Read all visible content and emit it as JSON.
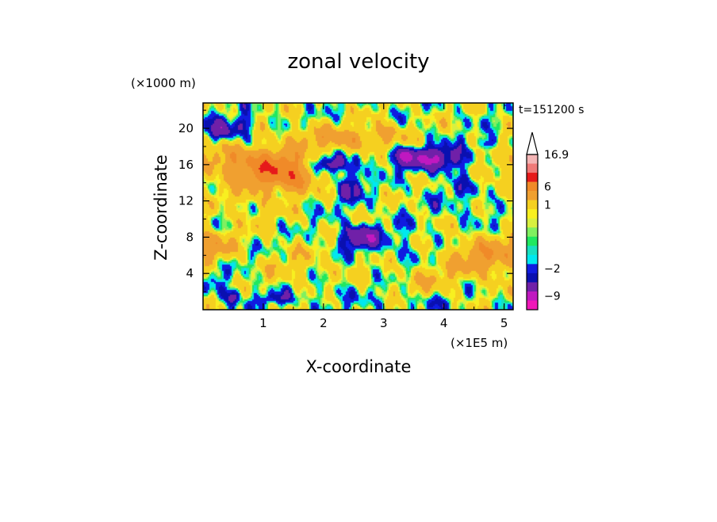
{
  "chart_data": {
    "type": "heatmap",
    "title": "zonal velocity",
    "xlabel": "X-coordinate",
    "ylabel": "Z-coordinate",
    "x_unit_label": "(×1E5 m)",
    "y_unit_label": "(×1000 m)",
    "time_label": "t=151200 s",
    "xlim": [
      0,
      5.15
    ],
    "ylim": [
      0,
      22.8
    ],
    "x_ticks": [
      "1",
      "2",
      "3",
      "4",
      "5"
    ],
    "x_tick_values": [
      1,
      2,
      3,
      4,
      5
    ],
    "y_ticks": [
      "4",
      "8",
      "12",
      "16",
      "20"
    ],
    "y_tick_values": [
      4,
      8,
      12,
      16,
      20
    ],
    "colorbar": {
      "labels": [
        "16.9",
        "6",
        "1",
        "−2",
        "−9"
      ],
      "levels": [
        16.9,
        13,
        10,
        6,
        3,
        1,
        0.6,
        0.3,
        0,
        -0.3,
        -0.6,
        -1,
        -2,
        -3,
        -6,
        -9,
        -13
      ],
      "colors": [
        "#f4b5b5",
        "#f07a78",
        "#e61a1a",
        "#f08a28",
        "#f0a030",
        "#f5d020",
        "#f8f020",
        "#d8f040",
        "#80f060",
        "#20e860",
        "#18e0c0",
        "#00e8f0",
        "#101ce0",
        "#0a10b0",
        "#7020a8",
        "#c018c0",
        "#f018b8"
      ],
      "arrow_color": "#ffffff"
    },
    "field": {
      "background": 0.4,
      "features": [
        {
          "x": 0.35,
          "z": 19.7,
          "sx": 0.22,
          "sz": 0.9,
          "value": -4.5
        },
        {
          "x": 0.7,
          "z": 20.5,
          "sx": 0.08,
          "sz": 0.7,
          "value": -3.5
        },
        {
          "x": 0.55,
          "z": 16.3,
          "sx": 0.45,
          "sz": 1.3,
          "value": 5
        },
        {
          "x": 1.25,
          "z": 15.2,
          "sx": 0.35,
          "sz": 1.6,
          "value": 7
        },
        {
          "x": 1.6,
          "z": 14.2,
          "sx": 0.2,
          "sz": 1.2,
          "value": 4
        },
        {
          "x": 1.9,
          "z": 19.0,
          "sx": 0.4,
          "sz": 1.0,
          "value": 3
        },
        {
          "x": 2.1,
          "z": 16.0,
          "sx": 0.2,
          "sz": 0.6,
          "value": -5
        },
        {
          "x": 2.5,
          "z": 18.5,
          "sx": 0.25,
          "sz": 0.8,
          "value": 3
        },
        {
          "x": 2.6,
          "z": 8.0,
          "sx": 0.22,
          "sz": 0.9,
          "value": -6
        },
        {
          "x": 2.55,
          "z": 14.5,
          "sx": 0.06,
          "sz": 1.8,
          "value": -4
        },
        {
          "x": 2.4,
          "z": 13.5,
          "sx": 0.08,
          "sz": 1.2,
          "value": -3.5
        },
        {
          "x": 3.0,
          "z": 19.4,
          "sx": 0.25,
          "sz": 0.9,
          "value": 3.5
        },
        {
          "x": 3.9,
          "z": 16.6,
          "sx": 0.45,
          "sz": 0.9,
          "value": -6
        },
        {
          "x": 3.35,
          "z": 17.0,
          "sx": 0.15,
          "sz": 0.6,
          "value": -4
        },
        {
          "x": 4.7,
          "z": 18.3,
          "sx": 0.1,
          "sz": 0.5,
          "value": -4
        },
        {
          "x": 4.8,
          "z": 16.0,
          "sx": 0.3,
          "sz": 1.2,
          "value": 3
        },
        {
          "x": 4.75,
          "z": 5.8,
          "sx": 0.45,
          "sz": 1.5,
          "value": 5
        },
        {
          "x": 0.15,
          "z": 6.8,
          "sx": 0.25,
          "sz": 1.4,
          "value": 4
        },
        {
          "x": 0.7,
          "z": 12.0,
          "sx": 0.35,
          "sz": 1.5,
          "value": 1.5
        },
        {
          "x": 1.7,
          "z": 13.0,
          "sx": 0.3,
          "sz": 1.0,
          "value": -1.5
        },
        {
          "x": 1.6,
          "z": 4.6,
          "sx": 0.45,
          "sz": 1.6,
          "value": 1.5
        },
        {
          "x": 2.0,
          "z": 1.8,
          "sx": 0.35,
          "sz": 1.0,
          "value": -1.2
        },
        {
          "x": 3.3,
          "z": 7.2,
          "sx": 0.3,
          "sz": 1.6,
          "value": -1.2
        },
        {
          "x": 3.7,
          "z": 3.3,
          "sx": 0.4,
          "sz": 1.4,
          "value": 1.8
        },
        {
          "x": 4.3,
          "z": 12.6,
          "sx": 0.35,
          "sz": 2.0,
          "value": -1.2
        },
        {
          "x": 0.25,
          "z": 3.0,
          "sx": 0.25,
          "sz": 1.8,
          "value": -1.2
        },
        {
          "x": 0.5,
          "z": 1.5,
          "sx": 0.08,
          "sz": 0.6,
          "value": -4
        },
        {
          "x": 1.2,
          "z": 1.2,
          "sx": 0.2,
          "sz": 0.5,
          "value": -3
        },
        {
          "x": 3.6,
          "z": 0.8,
          "sx": 0.5,
          "sz": 0.7,
          "value": -1.2
        },
        {
          "x": 0.9,
          "z": 9.3,
          "sx": 0.6,
          "sz": 1.2,
          "value": 0.3
        }
      ]
    }
  }
}
